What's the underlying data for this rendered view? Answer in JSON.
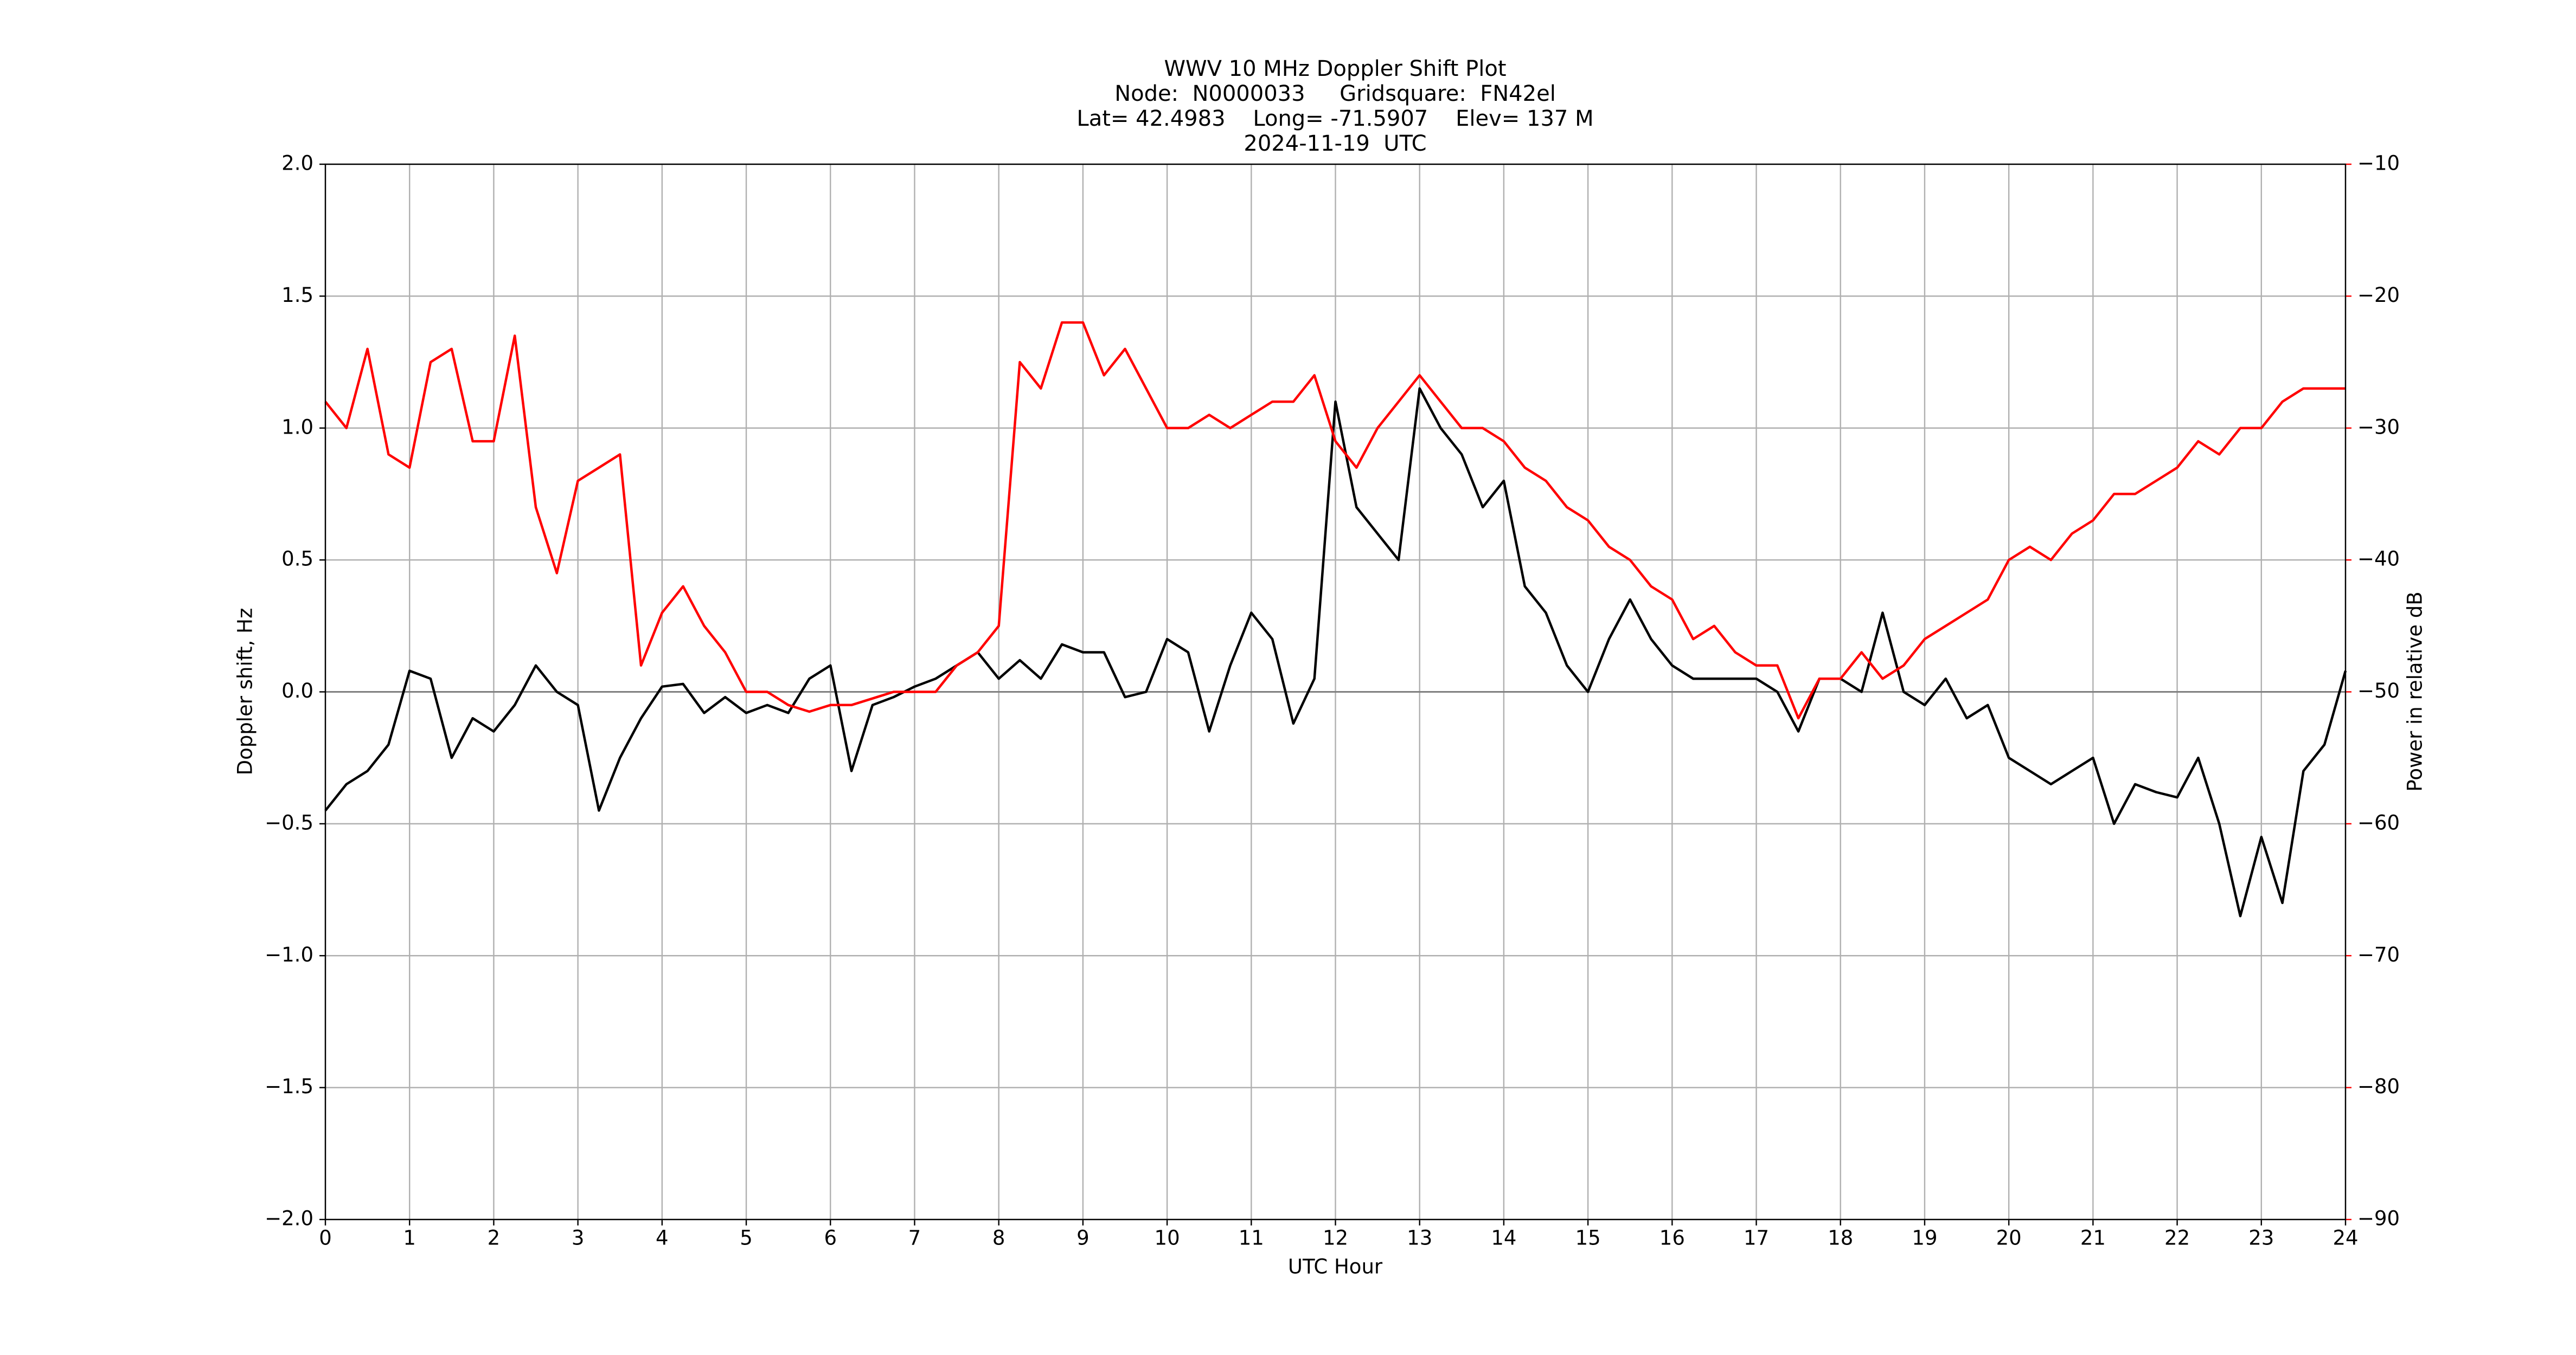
{
  "chart_data": {
    "type": "line",
    "title": "WWV 10 MHz Doppler Shift Plot",
    "subtitle": [
      "Node:  N0000033     Gridsquare:  FN42el",
      "Lat= 42.4983    Long= -71.5907    Elev= 137 M",
      "2024-11-19  UTC"
    ],
    "xlabel": "UTC Hour",
    "ylabel": "Doppler shift, Hz",
    "y2label": "Power in relative dB",
    "grid": true,
    "hline": 0,
    "xlim": [
      0,
      24
    ],
    "xticks": [
      0,
      1,
      2,
      3,
      4,
      5,
      6,
      7,
      8,
      9,
      10,
      11,
      12,
      13,
      14,
      15,
      16,
      17,
      18,
      19,
      20,
      21,
      22,
      23,
      24
    ],
    "ylim": [
      -2,
      2
    ],
    "yticks": [
      {
        "value": -2,
        "label": "−2.0"
      },
      {
        "value": -1.5,
        "label": "−1.5"
      },
      {
        "value": -1,
        "label": "−1.0"
      },
      {
        "value": -0.5,
        "label": "−0.5"
      },
      {
        "value": 0,
        "label": "0.0"
      },
      {
        "value": 0.5,
        "label": "0.5"
      },
      {
        "value": 1,
        "label": "1.0"
      },
      {
        "value": 1.5,
        "label": "1.5"
      },
      {
        "value": 2,
        "label": "2.0"
      }
    ],
    "y2lim": [
      -90,
      -10
    ],
    "y2ticks": [
      {
        "value": -90,
        "label": "−90"
      },
      {
        "value": -80,
        "label": "−80"
      },
      {
        "value": -70,
        "label": "−70"
      },
      {
        "value": -60,
        "label": "−60"
      },
      {
        "value": -50,
        "label": "−50"
      },
      {
        "value": -40,
        "label": "−40"
      },
      {
        "value": -30,
        "label": "−30"
      },
      {
        "value": -20,
        "label": "−20"
      },
      {
        "value": -10,
        "label": "−10"
      }
    ],
    "y2color": "#ff0000",
    "x": [
      0,
      0.25,
      0.5,
      0.75,
      1,
      1.25,
      1.5,
      1.75,
      2,
      2.25,
      2.5,
      2.75,
      3,
      3.25,
      3.5,
      3.75,
      4,
      4.25,
      4.5,
      4.75,
      5,
      5.25,
      5.5,
      5.75,
      6,
      6.25,
      6.5,
      6.75,
      7,
      7.25,
      7.5,
      7.75,
      8,
      8.25,
      8.5,
      8.75,
      9,
      9.25,
      9.5,
      9.75,
      10,
      10.25,
      10.5,
      10.75,
      11,
      11.25,
      11.5,
      11.75,
      12,
      12.25,
      12.5,
      12.75,
      13,
      13.25,
      13.5,
      13.75,
      14,
      14.25,
      14.5,
      14.75,
      15,
      15.25,
      15.5,
      15.75,
      16,
      16.25,
      16.5,
      16.75,
      17,
      17.25,
      17.5,
      17.75,
      18,
      18.25,
      18.5,
      18.75,
      19,
      19.25,
      19.5,
      19.75,
      20,
      20.25,
      20.5,
      20.75,
      21,
      21.25,
      21.5,
      21.75,
      22,
      22.25,
      22.5,
      22.75,
      23,
      23.25,
      23.5,
      23.75,
      24
    ],
    "series": [
      {
        "color": "#000000",
        "axis": "y",
        "values": [
          -0.45,
          -0.35,
          -0.3,
          -0.2,
          0.08,
          0.05,
          -0.25,
          -0.1,
          -0.15,
          -0.05,
          0.1,
          0.0,
          -0.05,
          -0.45,
          -0.25,
          -0.1,
          0.02,
          0.03,
          -0.08,
          -0.02,
          -0.08,
          -0.05,
          -0.08,
          0.05,
          0.1,
          -0.3,
          -0.05,
          -0.02,
          0.02,
          0.05,
          0.1,
          0.15,
          0.05,
          0.12,
          0.05,
          0.18,
          0.15,
          0.15,
          -0.02,
          0.0,
          0.2,
          0.15,
          -0.15,
          0.1,
          0.3,
          0.2,
          -0.12,
          0.05,
          1.1,
          0.7,
          0.6,
          0.5,
          1.15,
          1.0,
          0.9,
          0.7,
          0.8,
          0.4,
          0.3,
          0.1,
          0.0,
          0.2,
          0.35,
          0.2,
          0.1,
          0.05,
          0.05,
          0.05,
          0.05,
          0.0,
          -0.15,
          0.05,
          0.05,
          0.0,
          0.3,
          0.0,
          -0.05,
          0.05,
          -0.1,
          -0.05,
          -0.25,
          -0.3,
          -0.35,
          -0.3,
          -0.25,
          -0.5,
          -0.35,
          -0.38,
          -0.4,
          -0.25,
          -0.5,
          -0.85,
          -0.55,
          -0.8,
          -0.3,
          -0.2,
          0.08
        ]
      },
      {
        "color": "#ff0000",
        "axis": "y2",
        "values": [
          -28,
          -30,
          -24,
          -32,
          -33,
          -25,
          -24,
          -31,
          -31,
          -23,
          -36,
          -41,
          -34,
          -33,
          -32,
          -48,
          -44,
          -42,
          -45,
          -47,
          -50,
          -50,
          -51,
          -51.5,
          -51,
          -51,
          -50.5,
          -50,
          -50,
          -50,
          -48,
          -47,
          -45,
          -25,
          -27,
          -22,
          -22,
          -26,
          -24,
          -27,
          -30,
          -30,
          -29,
          -30,
          -29,
          -28,
          -28,
          -26,
          -31,
          -33,
          -30,
          -28,
          -26,
          -28,
          -30,
          -30,
          -31,
          -33,
          -34,
          -36,
          -37,
          -39,
          -40,
          -42,
          -43,
          -46,
          -45,
          -47,
          -48,
          -48,
          -52,
          -49,
          -49,
          -47,
          -49,
          -48,
          -46,
          -45,
          -44,
          -43,
          -40,
          -39,
          -40,
          -38,
          -37,
          -35,
          -35,
          -34,
          -33,
          -31,
          -32,
          -30,
          -30,
          -28,
          -27,
          -27,
          -27
        ]
      }
    ]
  }
}
